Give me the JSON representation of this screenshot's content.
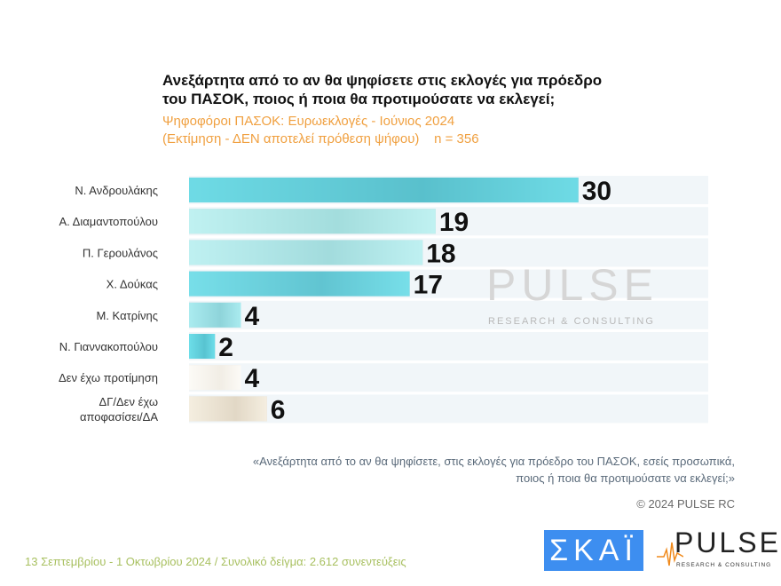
{
  "title": "Ανεξάρτητα από το αν θα ψηφίσετε στις εκλογές για πρόεδρο του ΠΑΣΟΚ, ποιος ή ποια θα προτιμούσατε να εκλεγεί;",
  "subtitle_line1": "Ψηφοφόροι ΠΑΣΟΚ: Ευρωεκλογές - Ιούνιος 2024",
  "subtitle_line2": "(Εκτίμηση - ΔΕΝ αποτελεί πρόθεση ψήφου)    n = 356",
  "watermark": "PULSE",
  "watermark_sub": "RESEARCH & CONSULTING",
  "note_line1": "«Ανεξάρτητα από το αν θα ψηφίσετε, στις εκλογές για πρόεδρο του ΠΑΣΟΚ, εσείς προσωπικά,",
  "note_line2": "ποιος ή ποια θα προτιμούσατε να εκλεγεί;»",
  "copyright": "© 2024 PULSE RC",
  "footer": "13 Σεπτεμβρίου - 1 Οκτωβρίου 2024  /  Συνολικό δείγμα:  2.612 συνεντεύξεις",
  "logos": {
    "skai": "ΣΚΑΪ",
    "pulse": "PULSE",
    "pulse_sub": "RESEARCH & CONSULTING"
  },
  "chart_data": {
    "type": "bar",
    "orientation": "horizontal",
    "categories": [
      "Ν. Ανδρουλάκης",
      "Α. Διαμαντοπούλου",
      "Π. Γερουλάνος",
      "Χ. Δούκας",
      "Μ. Κατρίνης",
      "Ν. Γιαννακοπούλου",
      "Δεν έχω προτίμηση",
      "ΔΓ/Δεν έχω αποφασίσει/ΔΑ"
    ],
    "values": [
      30,
      19,
      18,
      17,
      4,
      2,
      4,
      6
    ],
    "colors": [
      "#3f9fae",
      "#80c4c4",
      "#7fc2c4",
      "#45a4b4",
      "#6cb8c0",
      "#3ea3b4",
      "#e4ddd0",
      "#cbbda6"
    ],
    "xlim": [
      0,
      40
    ],
    "data_labels": true,
    "grid": false
  }
}
